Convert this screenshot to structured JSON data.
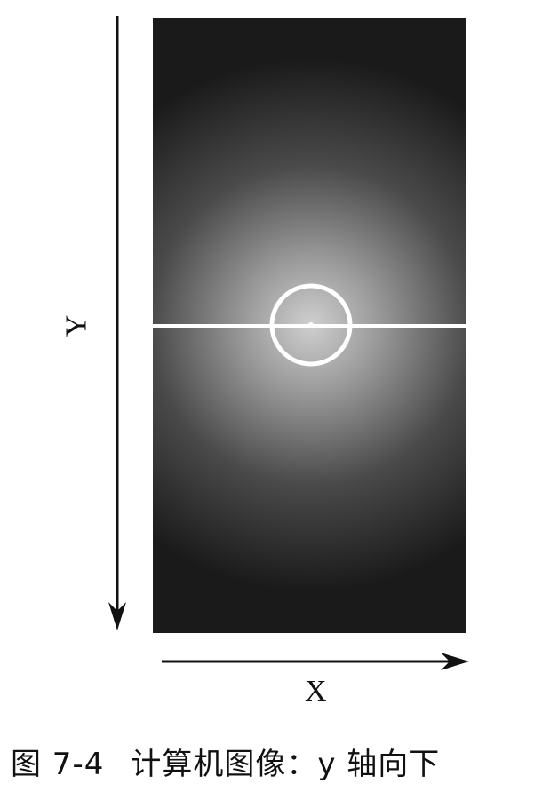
{
  "axes": {
    "y_label": "Y",
    "x_label": "X"
  },
  "caption": {
    "number": "图 7-4",
    "text": "计算机图像：y 轴向下"
  },
  "colors": {
    "image_center": "#c8c8c8",
    "image_edge": "#1c1c1c",
    "marker": "#ffffff",
    "axis": "#111111"
  }
}
